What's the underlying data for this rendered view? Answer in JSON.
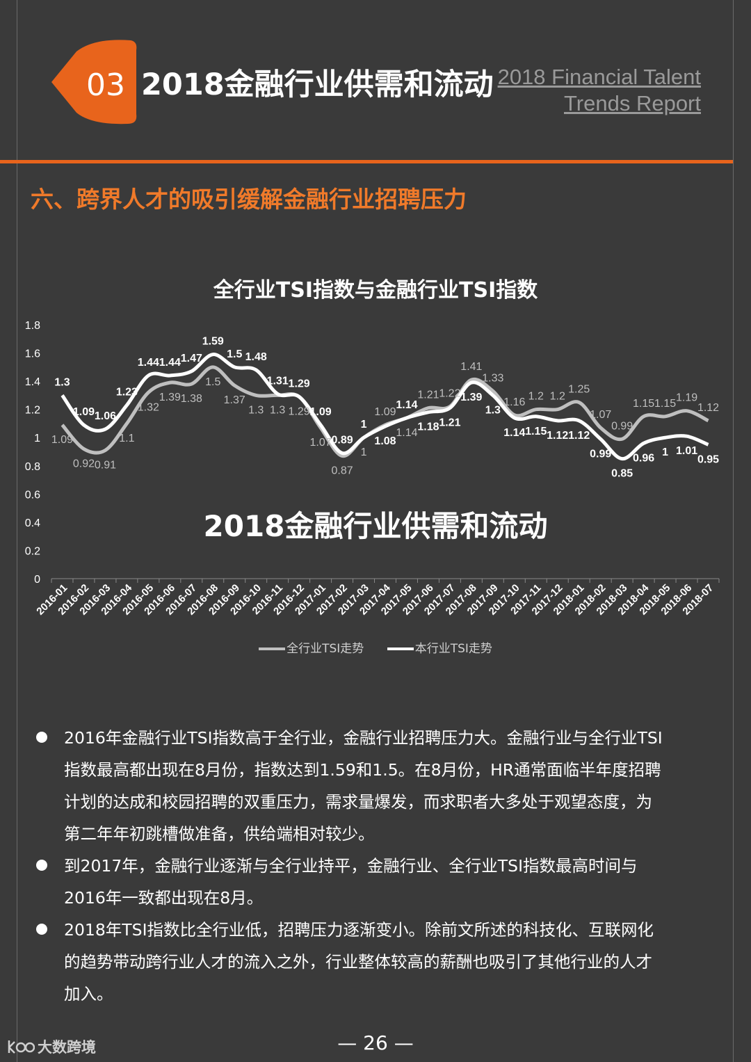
{
  "header": {
    "section_number": "03",
    "title": "2018金融行业供需和流动",
    "en_title_line1": "2018 Financial Talent",
    "en_title_line2": "Trends Report",
    "accent_color": "#e8641c"
  },
  "section_heading": "六、跨界人才的吸引缓解金融行业招聘压力",
  "chart_title": "全行业TSI指数与金融行业TSI指数",
  "chart_watermark": "2018金融行业供需和流动",
  "chart_data": {
    "type": "line",
    "title": "全行业TSI指数与金融行业TSI指数",
    "categories": [
      "2016-01",
      "2016-02",
      "2016-03",
      "2016-04",
      "2016-05",
      "2016-06",
      "2016-07",
      "2016-08",
      "2016-09",
      "2016-10",
      "2016-11",
      "2016-12",
      "2017-01",
      "2017-02",
      "2017-03",
      "2017-04",
      "2017-05",
      "2017-06",
      "2017-07",
      "2017-08",
      "2017-09",
      "2017-10",
      "2017-11",
      "2017-12",
      "2018-01",
      "2018-02",
      "2018-03",
      "2018-04",
      "2018-05",
      "2018-06",
      "2018-07"
    ],
    "y_ticks": [
      "0",
      "0.2",
      "0.4",
      "0.6",
      "0.8",
      "1",
      "1.2",
      "1.4",
      "1.6",
      "1.8"
    ],
    "ylim": [
      0,
      1.8
    ],
    "grid": false,
    "legend_position": "bottom",
    "series": [
      {
        "name": "全行业TSI走势",
        "color": "#bfbfbf",
        "values": [
          1.09,
          0.92,
          0.91,
          1.1,
          1.32,
          1.39,
          1.38,
          1.5,
          1.37,
          1.3,
          1.3,
          1.29,
          1.07,
          0.87,
          1,
          1.09,
          1.14,
          1.21,
          1.22,
          1.41,
          1.33,
          1.16,
          1.2,
          1.2,
          1.25,
          1.07,
          0.99,
          1.15,
          1.15,
          1.19,
          1.12
        ]
      },
      {
        "name": "本行业TSI走势",
        "color": "#ffffff",
        "values": [
          1.3,
          1.09,
          1.06,
          1.23,
          1.44,
          1.44,
          1.47,
          1.59,
          1.5,
          1.48,
          1.31,
          1.29,
          1.09,
          0.89,
          1,
          1.08,
          1.14,
          1.18,
          1.21,
          1.39,
          1.3,
          1.14,
          1.15,
          1.12,
          1.12,
          0.99,
          0.85,
          0.96,
          1,
          1.01,
          0.95
        ]
      }
    ]
  },
  "bullets": [
    {
      "lines": [
        "2016年金融行业TSI指数高于全行业，金融行业招聘压力大。金融行业与全行业TSI",
        "指数最高都出现在8月份，指数达到1.59和1.5。在8月份，HR通常面临半年度招聘",
        "计划的达成和校园招聘的双重压力，需求量爆发，而求职者大多处于观望态度，为",
        "第二年年初跳槽做准备，供给端相对较少。"
      ]
    },
    {
      "lines": [
        "到2017年，金融行业逐渐与全行业持平，金融行业、全行业TSI指数最高时间与",
        "2016年一致都出现在8月。"
      ]
    },
    {
      "lines": [
        "2018年TSI指数比全行业低，招聘压力逐渐变小。除前文所述的科技化、互联网化",
        "的趋势带动跨行业人才的流入之外，行业整体较高的薪酬也吸引了其他行业的人才",
        "加入。"
      ]
    }
  ],
  "page_number": "— 26 —",
  "logo_text": "大数跨境"
}
